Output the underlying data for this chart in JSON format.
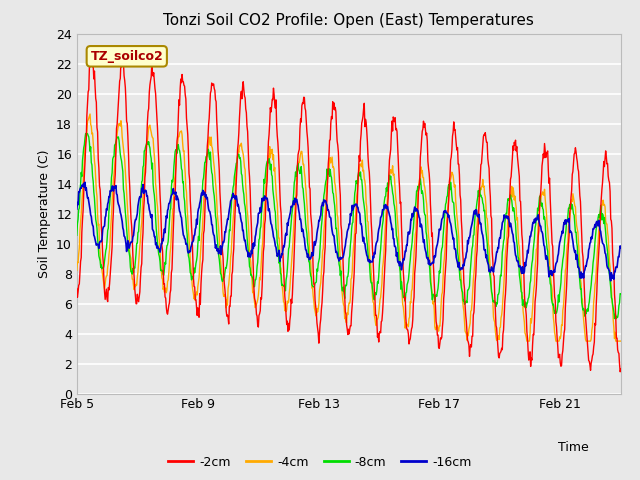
{
  "title": "Tonzi Soil CO2 Profile: Open (East) Temperatures",
  "ylabel": "Soil Temperature (C)",
  "xlabel": "Time",
  "watermark": "TZ_soilco2",
  "ylim": [
    0,
    24
  ],
  "xlim": [
    0,
    18
  ],
  "xtick_labels": [
    "Feb 5",
    "Feb 9",
    "Feb 13",
    "Feb 17",
    "Feb 21"
  ],
  "xtick_positions": [
    0,
    4,
    8,
    12,
    16
  ],
  "ytick_positions": [
    0,
    2,
    4,
    6,
    8,
    10,
    12,
    14,
    16,
    18,
    20,
    22,
    24
  ],
  "plot_bg_color": "#e8e8e8",
  "fig_bg_color": "#e8e8e8",
  "grid_color": "#ffffff",
  "colors": {
    "-2cm": "#ff0000",
    "-4cm": "#ffaa00",
    "-8cm": "#00dd00",
    "-16cm": "#0000cc"
  },
  "title_fontsize": 11,
  "axis_label_fontsize": 9,
  "tick_fontsize": 9,
  "legend_fontsize": 9
}
